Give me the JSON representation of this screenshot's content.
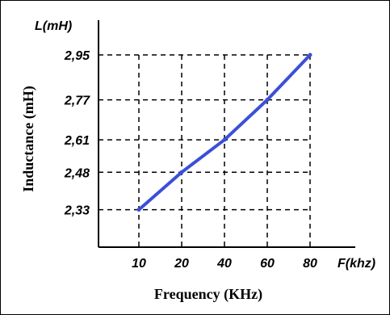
{
  "chart_data": {
    "type": "line",
    "title": "",
    "xlabel": "Frequency (KHz)",
    "ylabel": "Inductance (mH)",
    "x_unit_label": "F(khz)",
    "y_unit_label": "L(mH)",
    "x_ticks": [
      "10",
      "20",
      "40",
      "60",
      "80"
    ],
    "y_ticks": [
      "2,33",
      "2,48",
      "2,61",
      "2,77",
      "2,95"
    ],
    "series": [
      {
        "x": [
          "10",
          "20",
          "40",
          "60",
          "80"
        ],
        "y": [
          2.33,
          2.48,
          2.61,
          2.77,
          2.95
        ]
      }
    ],
    "ylim": [
      2.18,
      2.95
    ],
    "grid": true,
    "grid_style": "dashed",
    "line_color": "#3b4fd8",
    "axis_color": "#000000"
  }
}
